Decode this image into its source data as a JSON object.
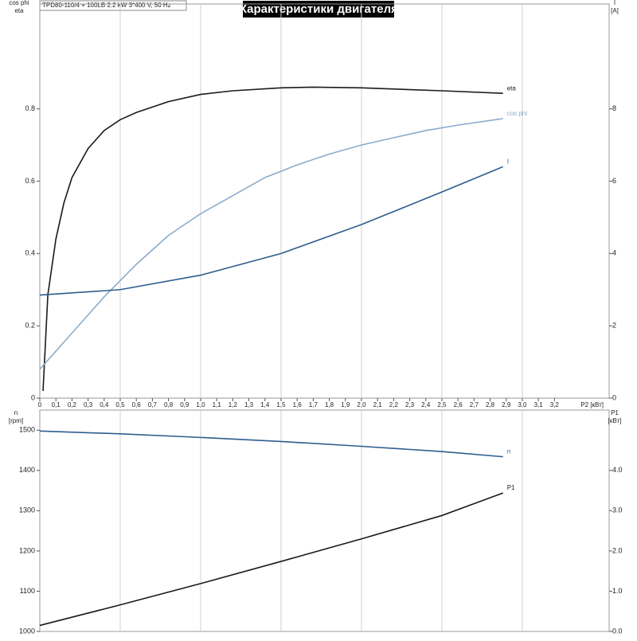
{
  "header": {
    "title": "Характеристики двигателя",
    "model": "TPD80-110/4 + 100LB  2.2 kW  3*400 V, 50 Hz"
  },
  "chart_data": [
    {
      "type": "line",
      "ylabel": [
        "cos phi",
        "eta"
      ],
      "y2label": [
        "I",
        "[A]"
      ],
      "xlabel": "P2 [кВт]",
      "xlim": [
        0,
        3.54
      ],
      "ylim": [
        0,
        1.09
      ],
      "y2lim": [
        0,
        10.9
      ],
      "xticks": [
        0,
        {
          "value": 0.1,
          "label": "0,1"
        },
        {
          "value": 0.2,
          "label": "0,2"
        },
        {
          "value": 0.3,
          "label": "0,3"
        },
        {
          "value": 0.4,
          "label": "0,4"
        },
        {
          "value": 0.5,
          "label": "0,5"
        },
        {
          "value": 0.6,
          "label": "0,6"
        },
        {
          "value": 0.7,
          "label": "0,7"
        },
        {
          "value": 0.8,
          "label": "0,8"
        },
        {
          "value": 0.9,
          "label": "0,9"
        },
        {
          "value": 1.0,
          "label": "1,0"
        },
        {
          "value": 1.1,
          "label": "1,1"
        },
        {
          "value": 1.2,
          "label": "1,2"
        },
        {
          "value": 1.3,
          "label": "1,3"
        },
        {
          "value": 1.4,
          "label": "1,4"
        },
        {
          "value": 1.5,
          "label": "1,5"
        },
        {
          "value": 1.6,
          "label": "1,6"
        },
        {
          "value": 1.7,
          "label": "1,7"
        },
        {
          "value": 1.8,
          "label": "1,8"
        },
        {
          "value": 1.9,
          "label": "1,9"
        },
        {
          "value": 2.0,
          "label": "2,0"
        },
        {
          "value": 2.1,
          "label": "2,1"
        },
        {
          "value": 2.2,
          "label": "2,2"
        },
        {
          "value": 2.3,
          "label": "2,3"
        },
        {
          "value": 2.4,
          "label": "2,4"
        },
        {
          "value": 2.5,
          "label": "2,5"
        },
        {
          "value": 2.6,
          "label": "2,6"
        },
        {
          "value": 2.7,
          "label": "2,7"
        },
        {
          "value": 2.8,
          "label": "2,8"
        },
        {
          "value": 2.9,
          "label": "2,9"
        },
        {
          "value": 3.0,
          "label": "3,0"
        },
        {
          "value": 3.1,
          "label": "3,1"
        },
        {
          "value": 3.2,
          "label": "3,2"
        }
      ],
      "yticks": [
        0,
        0.2,
        0.4,
        0.6,
        0.8
      ],
      "y2ticks": [
        0,
        2,
        4,
        6,
        8
      ],
      "series": [
        {
          "name": "eta",
          "color": "#1a1a1a",
          "x": [
            0.02,
            0.05,
            0.1,
            0.15,
            0.2,
            0.3,
            0.4,
            0.5,
            0.6,
            0.8,
            1.0,
            1.2,
            1.5,
            1.7,
            2.0,
            2.5,
            2.88
          ],
          "values": [
            0.02,
            0.286,
            0.44,
            0.54,
            0.61,
            0.69,
            0.74,
            0.77,
            0.79,
            0.82,
            0.84,
            0.85,
            0.858,
            0.86,
            0.858,
            0.85,
            0.843
          ]
        },
        {
          "name": "cos phi",
          "color": "#8aaccb",
          "x": [
            0,
            0.2,
            0.4,
            0.6,
            0.8,
            1.0,
            1.2,
            1.4,
            1.6,
            1.8,
            2.0,
            2.2,
            2.4,
            2.6,
            2.88
          ],
          "values": [
            0.08,
            0.18,
            0.28,
            0.37,
            0.45,
            0.51,
            0.56,
            0.61,
            0.645,
            0.675,
            0.7,
            0.72,
            0.74,
            0.755,
            0.773
          ]
        },
        {
          "name": "I",
          "color": "#2e5d8e",
          "axis": "y2",
          "x": [
            0,
            0.5,
            1.0,
            1.5,
            2.0,
            2.5,
            2.88
          ],
          "values": [
            2.85,
            3.0,
            3.4,
            4.0,
            4.8,
            5.7,
            6.4
          ]
        }
      ]
    },
    {
      "type": "line",
      "ylabel": [
        "n",
        "[rpm]"
      ],
      "y2label": [
        "P1",
        "[кВт]"
      ],
      "xlim": [
        0,
        3.54
      ],
      "ylim": [
        1000,
        1550
      ],
      "y2lim": [
        0,
        5.5
      ],
      "yticks": [
        1000,
        1100,
        1200,
        1300,
        1400,
        1500
      ],
      "y2ticks": [
        {
          "value": 0,
          "label": "0.0"
        },
        {
          "value": 1,
          "label": "1.0"
        },
        {
          "value": 2,
          "label": "2.0"
        },
        {
          "value": 3,
          "label": "3.0"
        },
        {
          "value": 4,
          "label": "4.0"
        }
      ],
      "series": [
        {
          "name": "n",
          "color": "#2e5d8e",
          "x": [
            0,
            0.5,
            1.0,
            1.5,
            2.0,
            2.5,
            2.88
          ],
          "values": [
            1498,
            1491,
            1482,
            1472,
            1460,
            1447,
            1434
          ]
        },
        {
          "name": "P1",
          "color": "#1a1a1a",
          "axis": "y2",
          "x": [
            0,
            0.5,
            1.0,
            1.5,
            2.0,
            2.5,
            2.88
          ],
          "values": [
            0.15,
            0.66,
            1.19,
            1.74,
            2.3,
            2.88,
            3.44
          ]
        }
      ]
    }
  ]
}
